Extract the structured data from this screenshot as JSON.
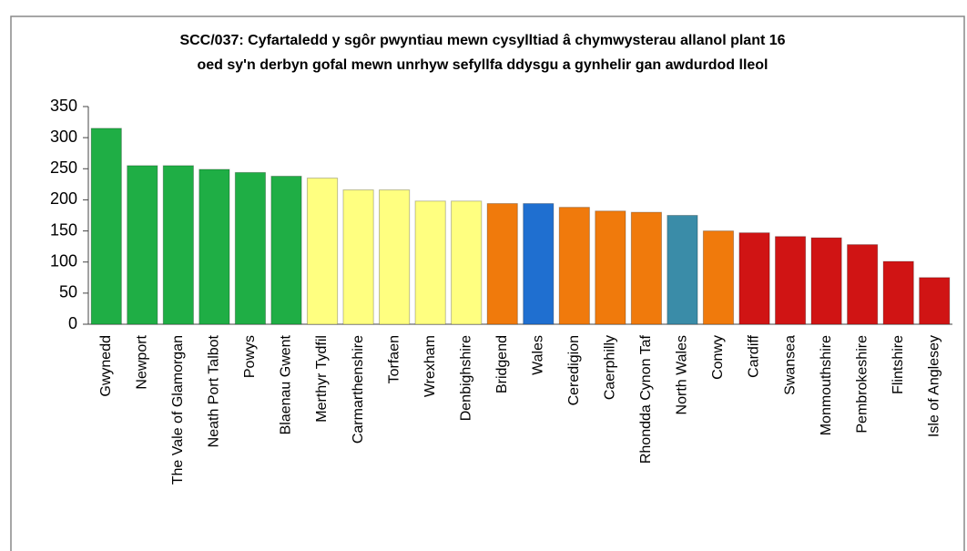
{
  "chart_data": {
    "type": "bar",
    "title": [
      "SCC/037: Cyfartaledd y sgôr pwyntiau mewn cysylltiad â chymwysterau allanol plant 16",
      "oed sy'n derbyn gofal mewn unrhyw sefyllfa ddysgu a gynhelir gan awdurdod lleol"
    ],
    "categories": [
      "Gwynedd",
      "Newport",
      "The Vale of Glamorgan",
      "Neath Port Talbot",
      "Powys",
      "Blaenau Gwent",
      "Merthyr Tydfil",
      "Carmarthenshire",
      "Torfaen",
      "Wrexham",
      "Denbighshire",
      "Bridgend",
      "Wales",
      "Ceredigion",
      "Caerphilly",
      "Rhondda Cynon Taf",
      "North Wales",
      "Conwy",
      "Cardiff",
      "Swansea",
      "Monmouthshire",
      "Pembrokeshire",
      "Flintshire",
      "Isle of Anglesey"
    ],
    "values": [
      315,
      255,
      255,
      249,
      244,
      238,
      235,
      216,
      216,
      198,
      198,
      194,
      194,
      188,
      182,
      180,
      175,
      150,
      147,
      141,
      139,
      128,
      101,
      75
    ],
    "colors": [
      "#1fae45",
      "#1fae45",
      "#1fae45",
      "#1fae45",
      "#1fae45",
      "#1fae45",
      "#ffff80",
      "#ffff80",
      "#ffff80",
      "#ffff80",
      "#ffff80",
      "#f07a0c",
      "#1f6fd0",
      "#f07a0c",
      "#f07a0c",
      "#f07a0c",
      "#3a8ca8",
      "#f07a0c",
      "#d01414",
      "#d01414",
      "#d01414",
      "#d01414",
      "#d01414",
      "#d01414"
    ],
    "ylim": [
      0,
      350
    ],
    "yticks": [
      0,
      50,
      100,
      150,
      200,
      250,
      300,
      350
    ],
    "grid": false
  }
}
